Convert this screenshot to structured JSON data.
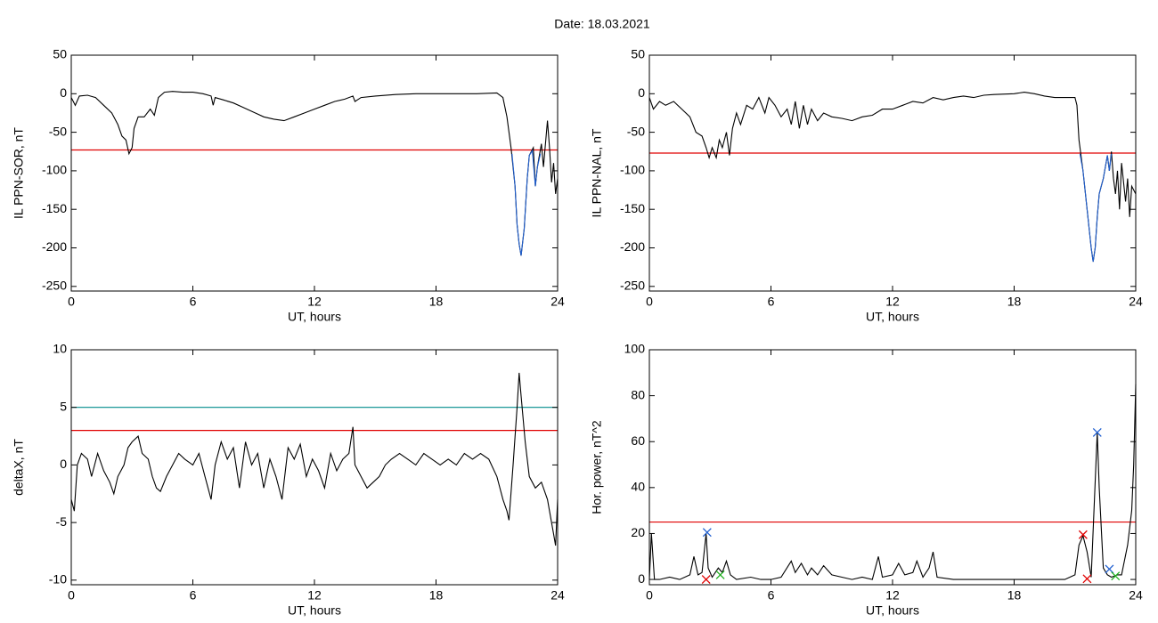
{
  "title": "Date:  18.03.2021",
  "chart_data": [
    {
      "type": "line",
      "ylabel": "IL PPN-SOR, nT",
      "xlabel": "UT, hours",
      "xlim": [
        0,
        24
      ],
      "xticks": [
        0,
        6,
        12,
        18,
        24
      ],
      "ylim": [
        -256,
        50
      ],
      "yticks": [
        50,
        0,
        -50,
        -100,
        -150,
        -200,
        -250
      ],
      "hlines": [
        {
          "value": -73,
          "color": "#e00000"
        }
      ],
      "series": [
        {
          "color": "#000000",
          "x": [
            0,
            0.2,
            0.4,
            0.8,
            1.2,
            1.6,
            2.0,
            2.3,
            2.5,
            2.7,
            2.85,
            3.0,
            3.1,
            3.3,
            3.6,
            3.9,
            4.1,
            4.3,
            4.6,
            5.0,
            5.5,
            6.0,
            6.5,
            6.9,
            7.0,
            7.1,
            7.5,
            8.0,
            8.5,
            9.0,
            9.5,
            10.0,
            10.5,
            11.0,
            11.5,
            12.0,
            12.5,
            13.0,
            13.5,
            13.9,
            14.0,
            14.3,
            15,
            16,
            17,
            18,
            19,
            20,
            21,
            21.3,
            21.5,
            21.7,
            21.9,
            22.0,
            22.1,
            22.2,
            22.35,
            22.5,
            22.6,
            22.8,
            22.9,
            23.0,
            23.2,
            23.3,
            23.5,
            23.6,
            23.7,
            23.8,
            23.9,
            24
          ],
          "values": [
            -5,
            -15,
            -3,
            -2,
            -5,
            -15,
            -25,
            -40,
            -55,
            -60,
            -78,
            -70,
            -45,
            -30,
            -30,
            -20,
            -28,
            -5,
            2,
            3,
            2,
            2,
            0,
            -3,
            -15,
            -5,
            -8,
            -12,
            -18,
            -24,
            -30,
            -33,
            -35,
            -30,
            -25,
            -20,
            -15,
            -10,
            -7,
            -3,
            -10,
            -5,
            -3,
            -1,
            0,
            0,
            0,
            0,
            1,
            -5,
            -30,
            -70,
            -120,
            -170,
            -195,
            -210,
            -175,
            -110,
            -80,
            -70,
            -120,
            -95,
            -65,
            -95,
            -35,
            -70,
            -115,
            -90,
            -130,
            -110
          ]
        },
        {
          "color": "#1f5fd0",
          "x": [
            21.75,
            21.9,
            22.0,
            22.1,
            22.2,
            22.35,
            22.5,
            22.6,
            22.75,
            22.9,
            23.0,
            23.15
          ],
          "values": [
            -78,
            -120,
            -170,
            -195,
            -210,
            -175,
            -110,
            -80,
            -74,
            -120,
            -95,
            -78
          ]
        }
      ]
    },
    {
      "type": "line",
      "ylabel": "IL PPN-NAL, nT",
      "xlabel": "UT, hours",
      "xlim": [
        0,
        24
      ],
      "xticks": [
        0,
        6,
        12,
        18,
        24
      ],
      "ylim": [
        -256,
        50
      ],
      "yticks": [
        50,
        0,
        -50,
        -100,
        -150,
        -200,
        -250
      ],
      "hlines": [
        {
          "value": -77,
          "color": "#e00000"
        }
      ],
      "series": [
        {
          "color": "#000000",
          "x": [
            0,
            0.2,
            0.5,
            0.8,
            1.2,
            1.6,
            2.0,
            2.3,
            2.6,
            2.8,
            2.95,
            3.1,
            3.3,
            3.45,
            3.6,
            3.8,
            3.95,
            4.1,
            4.3,
            4.5,
            4.8,
            5.1,
            5.4,
            5.7,
            5.9,
            6.2,
            6.5,
            6.8,
            7.0,
            7.2,
            7.4,
            7.6,
            7.8,
            8.0,
            8.3,
            8.6,
            9.0,
            9.5,
            10.0,
            10.5,
            11,
            11.5,
            12,
            12.5,
            13,
            13.5,
            14,
            14.5,
            15,
            15.5,
            16,
            16.5,
            17,
            18,
            18.5,
            19,
            19.5,
            20,
            21,
            21.1,
            21.2,
            21.4,
            21.6,
            21.8,
            21.9,
            22.0,
            22.1,
            22.2,
            22.4,
            22.6,
            22.7,
            22.8,
            22.9,
            23.0,
            23.1,
            23.2,
            23.3,
            23.5,
            23.6,
            23.7,
            23.8,
            24
          ],
          "values": [
            -5,
            -20,
            -10,
            -15,
            -10,
            -20,
            -30,
            -50,
            -55,
            -70,
            -83,
            -70,
            -83,
            -60,
            -70,
            -50,
            -80,
            -45,
            -25,
            -40,
            -15,
            -20,
            -5,
            -25,
            -5,
            -15,
            -30,
            -20,
            -40,
            -10,
            -45,
            -15,
            -40,
            -20,
            -35,
            -25,
            -30,
            -32,
            -35,
            -30,
            -28,
            -20,
            -20,
            -15,
            -10,
            -12,
            -5,
            -8,
            -5,
            -3,
            -5,
            -2,
            -1,
            0,
            2,
            0,
            -3,
            -5,
            -5,
            -15,
            -60,
            -100,
            -150,
            -200,
            -218,
            -200,
            -160,
            -130,
            -110,
            -80,
            -100,
            -75,
            -110,
            -130,
            -100,
            -150,
            -90,
            -140,
            -110,
            -160,
            -120,
            -130
          ]
        },
        {
          "color": "#1f5fd0",
          "x": [
            21.25,
            21.4,
            21.6,
            21.8,
            21.9,
            22.0,
            22.1,
            22.2,
            22.4,
            22.6,
            22.7,
            22.8
          ],
          "values": [
            -78,
            -100,
            -150,
            -200,
            -218,
            -200,
            -160,
            -130,
            -110,
            -80,
            -100,
            -78
          ]
        }
      ]
    },
    {
      "type": "line",
      "ylabel": "deltaX, nT",
      "xlabel": "UT, hours",
      "xlim": [
        0,
        24
      ],
      "xticks": [
        0,
        6,
        12,
        18,
        24
      ],
      "ylim": [
        -10.4,
        10
      ],
      "yticks": [
        10,
        5,
        0,
        -5,
        -10
      ],
      "hlines": [
        {
          "value": 5,
          "color": "#008b8b"
        },
        {
          "value": 3,
          "color": "#e00000"
        }
      ],
      "series": [
        {
          "color": "#000000",
          "x": [
            0,
            0.15,
            0.3,
            0.5,
            0.8,
            1.0,
            1.3,
            1.6,
            1.9,
            2.1,
            2.3,
            2.6,
            2.8,
            3.0,
            3.3,
            3.5,
            3.8,
            4.0,
            4.2,
            4.4,
            4.7,
            5.0,
            5.3,
            5.6,
            6.0,
            6.3,
            6.6,
            6.9,
            7.1,
            7.4,
            7.7,
            8.0,
            8.3,
            8.6,
            8.9,
            9.2,
            9.5,
            9.8,
            10.1,
            10.4,
            10.7,
            11,
            11.3,
            11.6,
            11.9,
            12.2,
            12.5,
            12.8,
            13.1,
            13.4,
            13.7,
            13.9,
            14.0,
            14.3,
            14.6,
            14.9,
            15.2,
            15.5,
            15.8,
            16.2,
            16.6,
            17.0,
            17.4,
            17.8,
            18.2,
            18.6,
            19.0,
            19.4,
            19.8,
            20.2,
            20.6,
            21.0,
            21.3,
            21.5,
            21.6,
            21.8,
            22.0,
            22.1,
            22.2,
            22.4,
            22.6,
            22.9,
            23.2,
            23.5,
            23.8,
            23.9,
            24
          ],
          "values": [
            -3,
            -4,
            0,
            1,
            0.5,
            -1,
            1,
            -0.5,
            -1.5,
            -2.5,
            -1,
            0,
            1.5,
            2,
            2.5,
            1,
            0.5,
            -1,
            -2,
            -2.3,
            -1,
            0,
            1,
            0.5,
            0,
            1,
            -1,
            -3,
            0,
            2,
            0.5,
            1.5,
            -2,
            2,
            0,
            1,
            -2,
            0.5,
            -1,
            -3,
            1.5,
            0.5,
            1.8,
            -1,
            0.5,
            -0.5,
            -2,
            1,
            -0.5,
            0.5,
            1,
            3.3,
            0,
            -1,
            -2,
            -1.5,
            -1,
            0,
            0.5,
            1,
            0.5,
            0,
            1,
            0.5,
            0,
            0.5,
            0,
            1,
            0.5,
            1,
            0.5,
            -1,
            -3,
            -4,
            -4.8,
            0,
            5,
            8,
            6,
            2,
            -1,
            -2,
            -1.5,
            -3,
            -6,
            -7,
            -3
          ]
        }
      ]
    },
    {
      "type": "line",
      "ylabel": "Hor. power, nT^2",
      "xlabel": "UT, hours",
      "xlim": [
        0,
        24
      ],
      "xticks": [
        0,
        6,
        12,
        18,
        24
      ],
      "ylim": [
        -2.3,
        100
      ],
      "yticks": [
        100,
        80,
        60,
        40,
        20,
        0
      ],
      "hlines": [
        {
          "value": 25,
          "color": "#e00000"
        }
      ],
      "series": [
        {
          "color": "#000000",
          "x": [
            0,
            0.1,
            0.25,
            0.5,
            1.0,
            1.5,
            2.0,
            2.2,
            2.4,
            2.6,
            2.8,
            2.9,
            3.1,
            3.4,
            3.6,
            3.8,
            4.0,
            4.3,
            5.0,
            5.5,
            6,
            6.5,
            7.0,
            7.2,
            7.5,
            7.8,
            8.0,
            8.3,
            8.6,
            9.0,
            9.5,
            10,
            10.5,
            11,
            11.3,
            11.5,
            12,
            12.3,
            12.6,
            13,
            13.2,
            13.5,
            13.8,
            14,
            14.2,
            15,
            16,
            17,
            18,
            19,
            20,
            20.5,
            21,
            21.2,
            21.4,
            21.6,
            21.8,
            22.1,
            22.2,
            22.4,
            22.6,
            22.8,
            23.1,
            23.3,
            23.6,
            23.8,
            23.9,
            24
          ],
          "values": [
            0,
            20,
            0,
            0,
            1,
            0,
            2,
            10,
            2,
            3,
            20,
            5,
            1,
            5,
            3,
            8,
            2,
            0,
            1,
            0,
            0,
            1,
            8,
            3,
            7,
            2,
            5,
            2,
            6,
            2,
            1,
            0,
            1,
            0,
            10,
            1,
            2,
            7,
            2,
            3,
            8,
            1,
            5,
            12,
            1,
            0,
            0,
            0,
            0,
            0,
            0,
            0,
            2,
            15,
            19,
            12,
            1,
            64,
            40,
            5,
            2,
            1,
            2,
            2,
            15,
            30,
            50,
            85
          ]
        },
        {
          "color": "#1f5fd0",
          "marker": "x",
          "x": [
            2.85,
            22.1,
            22.7
          ],
          "values": [
            20.5,
            64,
            4.5
          ]
        },
        {
          "color": "#e00000",
          "marker": "x",
          "x": [
            21.4,
            2.8,
            21.6
          ],
          "values": [
            19.5,
            0,
            0.3
          ]
        },
        {
          "color": "#20b020",
          "marker": "x",
          "x": [
            3.5,
            23.0
          ],
          "values": [
            2,
            1.5
          ]
        }
      ]
    }
  ]
}
